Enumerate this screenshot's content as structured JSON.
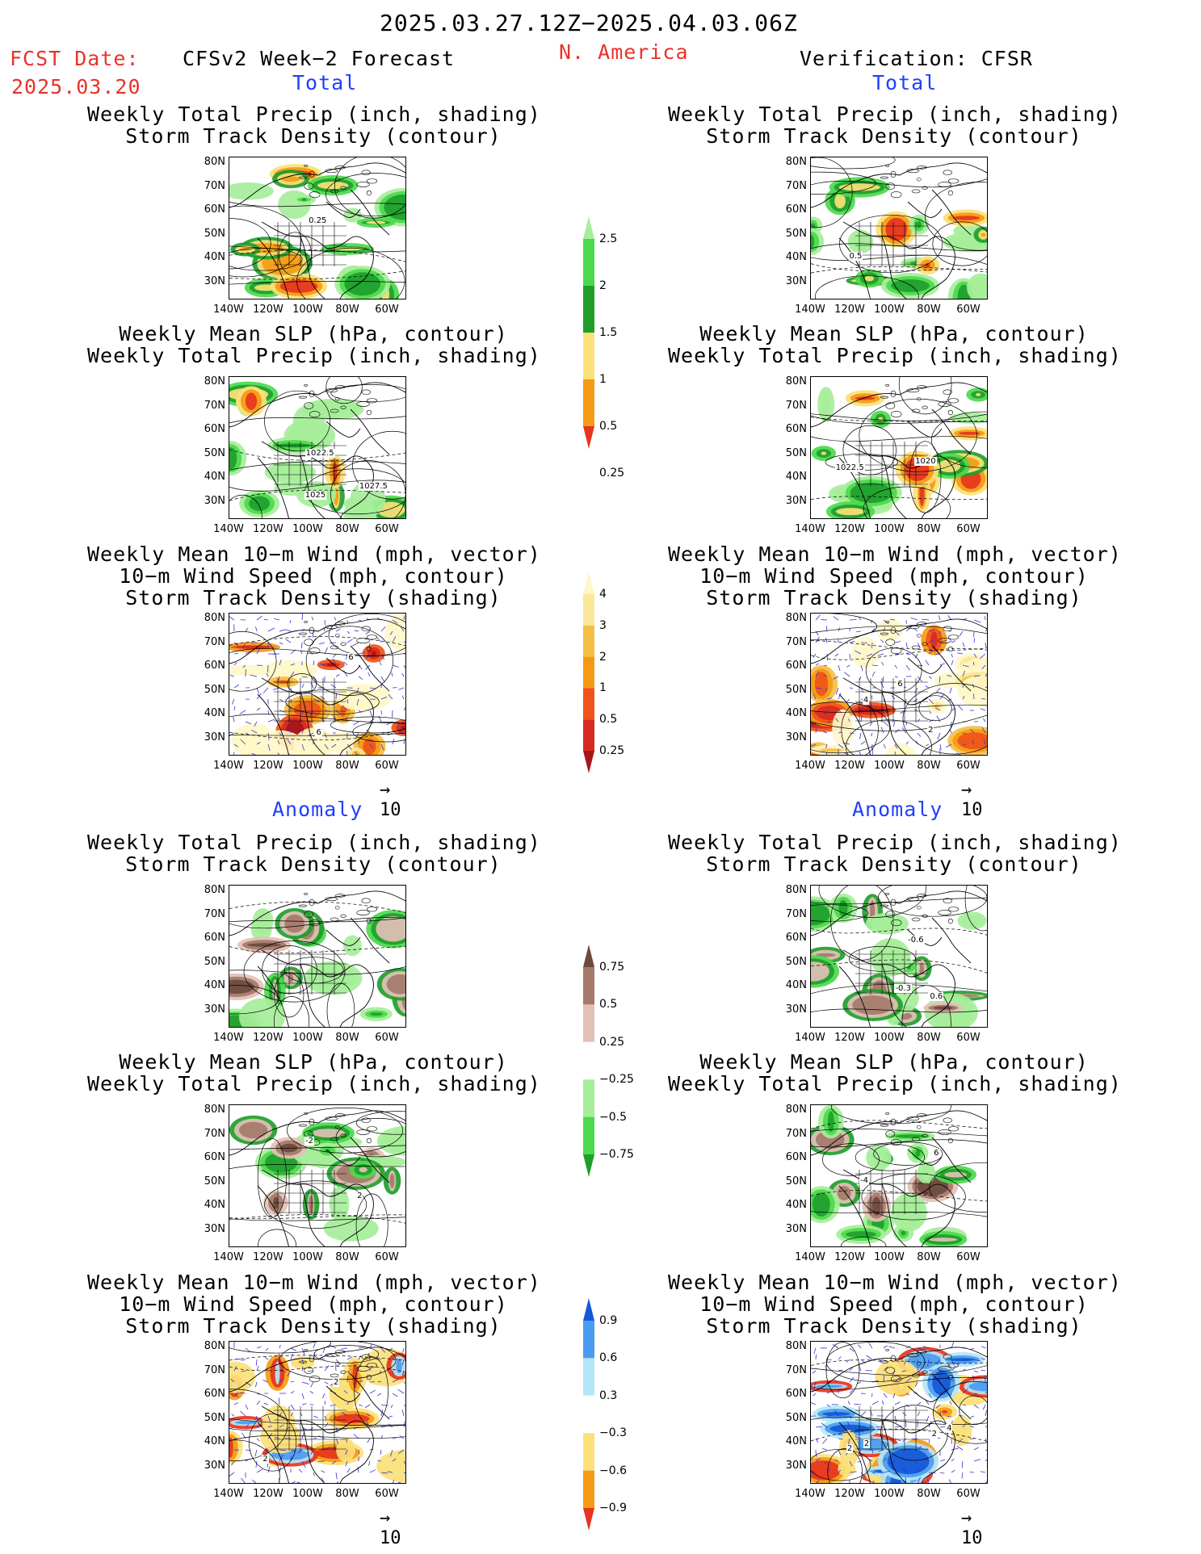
{
  "header": {
    "period": "2025.03.27.12Z−2025.04.03.06Z",
    "fcst_label": "FCST Date:",
    "fcst_date": "2025.03.20",
    "left_title": "CFSv2 Week−2 Forecast",
    "center_title": "N. America",
    "right_title": "Verification: CFSR"
  },
  "sections": {
    "total": "Total",
    "anomaly": "Anomaly"
  },
  "titles": {
    "precip_storm": [
      "Weekly Total Precip (inch, shading)",
      "Storm Track Density (contour)"
    ],
    "slp_precip": [
      "Weekly Mean SLP (hPa, contour)",
      "Weekly Total Precip (inch, shading)"
    ],
    "wind_storm": [
      "Weekly Mean 10−m Wind (mph, vector)",
      "10−m Wind Speed (mph, contour)",
      "Storm Track Density (shading)"
    ]
  },
  "axes": {
    "lat_labels": [
      "80N",
      "70N",
      "60N",
      "50N",
      "40N",
      "30N"
    ],
    "lon_labels": [
      "140W",
      "120W",
      "100W",
      "80W",
      "60W"
    ]
  },
  "vector_reference": "10",
  "contour_labels": {
    "fcst_total_precip": [
      "0.25"
    ],
    "obs_total_precip": [
      "0.5"
    ],
    "fcst_total_slp": [
      "1025",
      "1027.5",
      "1022.5"
    ],
    "obs_total_slp": [
      "1022.5",
      "1020"
    ],
    "fcst_total_wind": [
      "6",
      "6"
    ],
    "obs_total_wind": [
      "2",
      "4",
      "6"
    ],
    "obs_anom_precip": [
      "-0.6",
      "-0.3",
      "0.6"
    ],
    "fcst_anom_slp": [
      "2",
      "-2"
    ],
    "obs_anom_slp": [
      "-4",
      "6"
    ],
    "fcst_anom_wind": [
      "2",
      "2"
    ],
    "obs_anom_wind": [
      "2",
      "2",
      "2",
      "4"
    ]
  },
  "colorbars": {
    "precip_total": {
      "labels": [
        "2.5",
        "2",
        "1.5",
        "1",
        "0.5",
        "0.25"
      ],
      "colors": [
        "#e6341e",
        "#f59a14",
        "#fbe17a",
        "#1f9e2c",
        "#4cd94c",
        "#a6ee9a"
      ]
    },
    "storm_total": {
      "labels": [
        "4",
        "3",
        "2",
        "1",
        "0.5",
        "0.25"
      ],
      "colors": [
        "#a8161b",
        "#d92a1f",
        "#f0541a",
        "#f59a14",
        "#f5be45",
        "#fbe79a",
        "#fff7c8"
      ]
    },
    "precip_anom": {
      "labels": [
        "0.75",
        "0.5",
        "0.25",
        "−0.25",
        "−0.5",
        "−0.75"
      ],
      "colors": [
        "#1f9e2c",
        "#4cd94c",
        "#a6ee9a",
        "#ffffff",
        "#e2c1b6",
        "#a57a6b",
        "#6e4a3e"
      ]
    },
    "storm_anom": {
      "labels": [
        "0.9",
        "0.6",
        "0.3",
        "−0.3",
        "−0.6",
        "−0.9"
      ],
      "colors": [
        "#e6341e",
        "#f59a14",
        "#fbe17a",
        "#ffffff",
        "#b3e6f7",
        "#4a9cf0",
        "#1558d6"
      ]
    }
  }
}
